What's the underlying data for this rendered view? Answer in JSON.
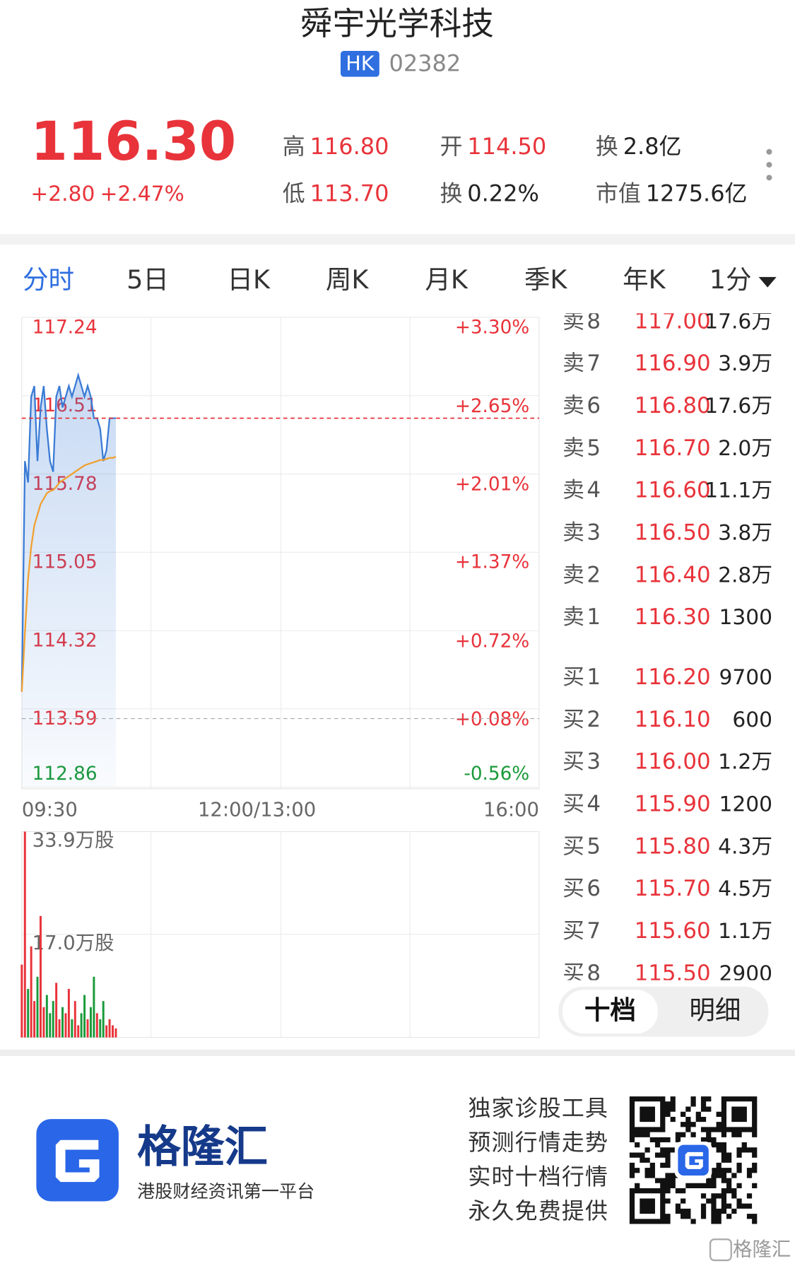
{
  "header": {
    "name": "舜宇光学科技",
    "market": "HK",
    "code": "02382"
  },
  "quote": {
    "price": "116.30",
    "change": "+2.80",
    "change_pct": "+2.47%",
    "stats": [
      {
        "label": "高",
        "value": "116.80"
      },
      {
        "label": "开",
        "value": "114.50"
      },
      {
        "label": "换",
        "value": "2.8亿"
      },
      {
        "label": "低",
        "value": "113.70"
      },
      {
        "label": "换",
        "value": "0.22%"
      },
      {
        "label": "市值",
        "value": "1275.6亿"
      }
    ]
  },
  "tabs": [
    "分时",
    "5日",
    "日K",
    "周K",
    "月K",
    "季K",
    "年K",
    "1分"
  ],
  "chart_data": {
    "type": "line",
    "prev_close": 113.5,
    "last_price": 116.3,
    "xlim": [
      0,
      330
    ],
    "xticks": [
      {
        "value": 0,
        "label": "09:30"
      },
      {
        "value": 150,
        "label": "12:00/13:00"
      },
      {
        "value": 330,
        "label": "16:00"
      }
    ],
    "ylim": [
      112.86,
      117.24
    ],
    "yticks": [
      117.24,
      116.51,
      115.78,
      115.05,
      114.32,
      113.59,
      112.86
    ],
    "y2lim": [
      -0.56,
      3.3
    ],
    "y2ticks": [
      {
        "value": 3.3,
        "label": "+3.30%"
      },
      {
        "value": 2.65,
        "label": "+2.65%"
      },
      {
        "value": 2.01,
        "label": "+2.01%"
      },
      {
        "value": 1.37,
        "label": "+1.37%"
      },
      {
        "value": 0.72,
        "label": "+0.72%"
      },
      {
        "value": 0.08,
        "label": "+0.08%"
      },
      {
        "value": -0.56,
        "label": "-0.56%"
      }
    ],
    "x": [
      0,
      2,
      4,
      6,
      8,
      10,
      12,
      14,
      16,
      18,
      20,
      22,
      24,
      26,
      28,
      30,
      32,
      34,
      36,
      38,
      40,
      42,
      44,
      46,
      48,
      50,
      52,
      54,
      56,
      58,
      60
    ],
    "series": [
      {
        "name": "price",
        "color": "#3a7bd5",
        "values": [
          113.75,
          115.9,
          115.7,
          116.5,
          116.6,
          115.9,
          116.4,
          116.6,
          116.2,
          115.9,
          115.8,
          116.5,
          116.6,
          116.4,
          116.5,
          116.6,
          116.5,
          116.6,
          116.7,
          116.6,
          116.5,
          116.6,
          116.5,
          116.3,
          116.3,
          116.2,
          115.9,
          116.0,
          116.3,
          116.3,
          116.3
        ]
      },
      {
        "name": "average",
        "color": "#f0a030",
        "values": [
          113.75,
          114.3,
          114.8,
          115.1,
          115.3,
          115.4,
          115.5,
          115.55,
          115.6,
          115.62,
          115.63,
          115.66,
          115.7,
          115.72,
          115.74,
          115.76,
          115.78,
          115.8,
          115.82,
          115.84,
          115.86,
          115.87,
          115.88,
          115.89,
          115.9,
          115.91,
          115.91,
          115.92,
          115.93,
          115.93,
          115.94
        ]
      }
    ],
    "volume": {
      "ylim": [
        0,
        33.9
      ],
      "yticks": [
        {
          "value": 33.9,
          "label": "33.9万股"
        },
        {
          "value": 17.0,
          "label": "17.0万股"
        }
      ],
      "up_color": "#e8333a",
      "down_color": "#1a9a3a",
      "values": [
        12,
        33.9,
        8,
        15,
        6,
        10,
        20,
        5,
        7,
        4,
        6,
        9,
        3,
        5,
        4,
        8,
        3,
        6,
        2,
        4,
        7,
        3,
        5,
        10,
        4,
        3,
        6,
        2,
        3,
        2,
        1.5
      ]
    }
  },
  "order_book": {
    "rows": [
      {
        "label": "卖8",
        "price": "117.00",
        "volume": "17.6万"
      },
      {
        "label": "卖7",
        "price": "116.90",
        "volume": "3.9万"
      },
      {
        "label": "卖6",
        "price": "116.80",
        "volume": "17.6万"
      },
      {
        "label": "卖5",
        "price": "116.70",
        "volume": "2.0万"
      },
      {
        "label": "卖4",
        "price": "116.60",
        "volume": "11.1万"
      },
      {
        "label": "卖3",
        "price": "116.50",
        "volume": "3.8万"
      },
      {
        "label": "卖2",
        "price": "116.40",
        "volume": "2.8万"
      },
      {
        "label": "卖1",
        "price": "116.30",
        "volume": "1300"
      },
      {
        "label": "买1",
        "price": "116.20",
        "volume": "9700"
      },
      {
        "label": "买2",
        "price": "116.10",
        "volume": "600"
      },
      {
        "label": "买3",
        "price": "116.00",
        "volume": "1.2万"
      },
      {
        "label": "买4",
        "price": "115.90",
        "volume": "1200"
      },
      {
        "label": "买5",
        "price": "115.80",
        "volume": "4.3万"
      },
      {
        "label": "买6",
        "price": "115.70",
        "volume": "4.5万"
      },
      {
        "label": "买7",
        "price": "115.60",
        "volume": "1.1万"
      },
      {
        "label": "买8",
        "price": "115.50",
        "volume": "2900"
      }
    ],
    "tabs": [
      "十档",
      "明细"
    ]
  },
  "footer": {
    "brand": "格隆汇",
    "slogan": "港股财经资讯第一平台",
    "features": [
      "独家诊股工具",
      "预测行情走势",
      "实时十档行情",
      "永久免费提供"
    ],
    "watermark": "格隆汇"
  }
}
